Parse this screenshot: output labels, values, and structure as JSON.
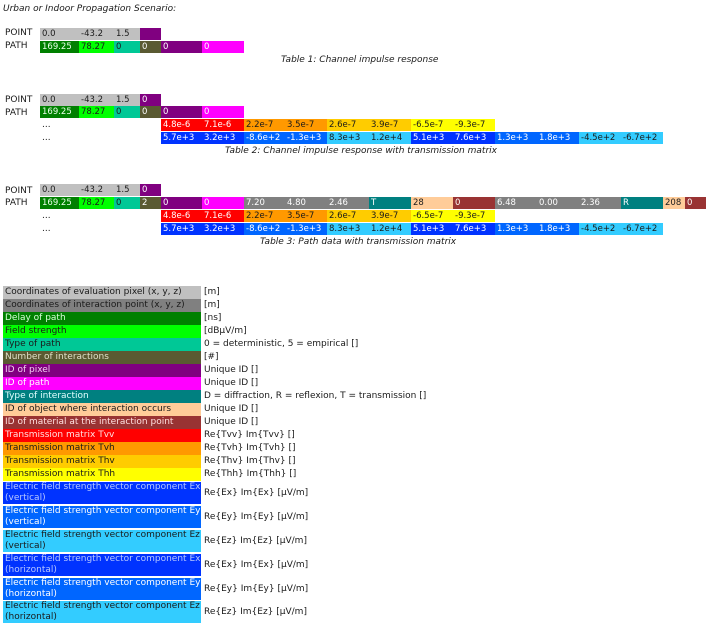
{
  "heading": "Urban or Indoor Propagation Scenario:",
  "row_labels": {
    "point": "POINT",
    "path": "PATH",
    "dots": "..."
  },
  "colors": {
    "lightgray": "#c0c0c0",
    "gray": "#808080",
    "darkgreen": "#008000",
    "green": "#00ff00",
    "teal": "#00c896",
    "olive": "#5a5a32",
    "purple": "#800080",
    "magenta": "#ff00ff",
    "darkteal": "#008080",
    "peach": "#ffcc99",
    "brown": "#993333",
    "red": "#ff0000",
    "orange": "#ff9900",
    "gold": "#ffcc00",
    "yellow": "#ffff00",
    "blue": "#0033ff",
    "medblue": "#0066ff",
    "lightblue": "#33ccff"
  },
  "table1": {
    "caption": "Table 1: Channel impulse response",
    "point": [
      "0.0",
      "-43.2",
      "1.5",
      ""
    ],
    "path": [
      "169.25",
      "78.27",
      "0",
      "0",
      "0",
      "0"
    ]
  },
  "table2": {
    "caption": "Table 2: Channel impulse response with transmission matrix",
    "point": [
      "0.0",
      "-43.2",
      "1.5",
      "0"
    ],
    "path": [
      "169.25",
      "78.27",
      "0",
      "0",
      "0",
      "0"
    ],
    "tm": [
      "4.8e-6",
      "7.1e-6",
      "2.2e-7",
      "3.5e-7",
      "2.6e-7",
      "3.9e-7",
      "-6.5e-7",
      "-9.3e-7"
    ],
    "field": [
      "5.7e+3",
      "3.2e+3",
      "-8.6e+2",
      "-1.3e+3",
      "8.3e+3",
      "1.2e+4",
      "5.1e+3",
      "7.6e+3",
      "1.3e+3",
      "1.8e+3",
      "-4.5e+2",
      "-6.7e+2"
    ]
  },
  "table3": {
    "caption": "Table 3: Path data with transmission matrix",
    "point": [
      "0.0",
      "-43.2",
      "1.5",
      "0"
    ],
    "path": [
      "169.25",
      "78.27",
      "0",
      "2",
      "0",
      "0",
      "7.20",
      "4.80",
      "2.46",
      "T",
      "28",
      "0",
      "6.48",
      "0.00",
      "2.36",
      "R",
      "208",
      "0"
    ],
    "tm": [
      "4.8e-6",
      "7.1e-6",
      "2.2e-7",
      "3.5e-7",
      "2.6e-7",
      "3.9e-7",
      "-6.5e-7",
      "-9.3e-7"
    ],
    "field": [
      "5.7e+3",
      "3.2e+3",
      "-8.6e+2",
      "-1.3e+3",
      "8.3e+3",
      "1.2e+4",
      "5.1e+3",
      "7.6e+3",
      "1.3e+3",
      "1.8e+3",
      "-4.5e+2",
      "-6.7e+2"
    ]
  },
  "legend": [
    {
      "label": "Coordinates of evaluation pixel (x, y, z)",
      "desc": "[m]"
    },
    {
      "label": "Coordinates of interaction point (x, y, z)",
      "desc": "[m]"
    },
    {
      "label": "Delay of path",
      "desc": "[ns]"
    },
    {
      "label": "Field strength",
      "desc": "[dBµV/m]"
    },
    {
      "label": "Type of path",
      "desc": "0 = deterministic, 5 = empirical []"
    },
    {
      "label": "Number of interactions",
      "desc": "[#]"
    },
    {
      "label": "ID of pixel",
      "desc": "Unique ID []"
    },
    {
      "label": "ID of path",
      "desc": "Unique ID []"
    },
    {
      "label": "Type of interaction",
      "desc": "D = diffraction, R = reflexion, T = transmission []"
    },
    {
      "label": "ID of object where interaction occurs",
      "desc": "Unique ID []"
    },
    {
      "label": "ID of material at the interaction point",
      "desc": "Unique ID []"
    },
    {
      "label": "Transmission matrix Tvv",
      "desc": "Re{Tvv} Im{Tvv} []"
    },
    {
      "label": "Transmission matrix Tvh",
      "desc": "Re{Tvh} Im{Tvh} []"
    },
    {
      "label": "Transmission matrix Thv",
      "desc": "Re{Thv} Im{Thv} []"
    },
    {
      "label": "Transmission matrix Thh",
      "desc": "Re{Thh} Im{Thh} []"
    },
    {
      "label": "Electric field strength vector component Ex (vertical)",
      "desc": "Re{Ex} Im{Ex} [µV/m]"
    },
    {
      "label": "Electric field strength vector component Ey (vertical)",
      "desc": "Re{Ey} Im{Ey} [µV/m]"
    },
    {
      "label": "Electric field strength vector component Ez (vertical)",
      "desc": "Re{Ez} Im{Ez} [µV/m]"
    },
    {
      "label": "Electric field strength vector component Ex (horizontal)",
      "desc": "Re{Ex} Im{Ex} [µV/m]"
    },
    {
      "label": "Electric field strength vector component Ey (horizontal)",
      "desc": "Re{Ey} Im{Ey} [µV/m]"
    },
    {
      "label": "Electric field strength vector component Ez (horizontal)",
      "desc": "Re{Ez} Im{Ez} [µV/m]"
    }
  ]
}
